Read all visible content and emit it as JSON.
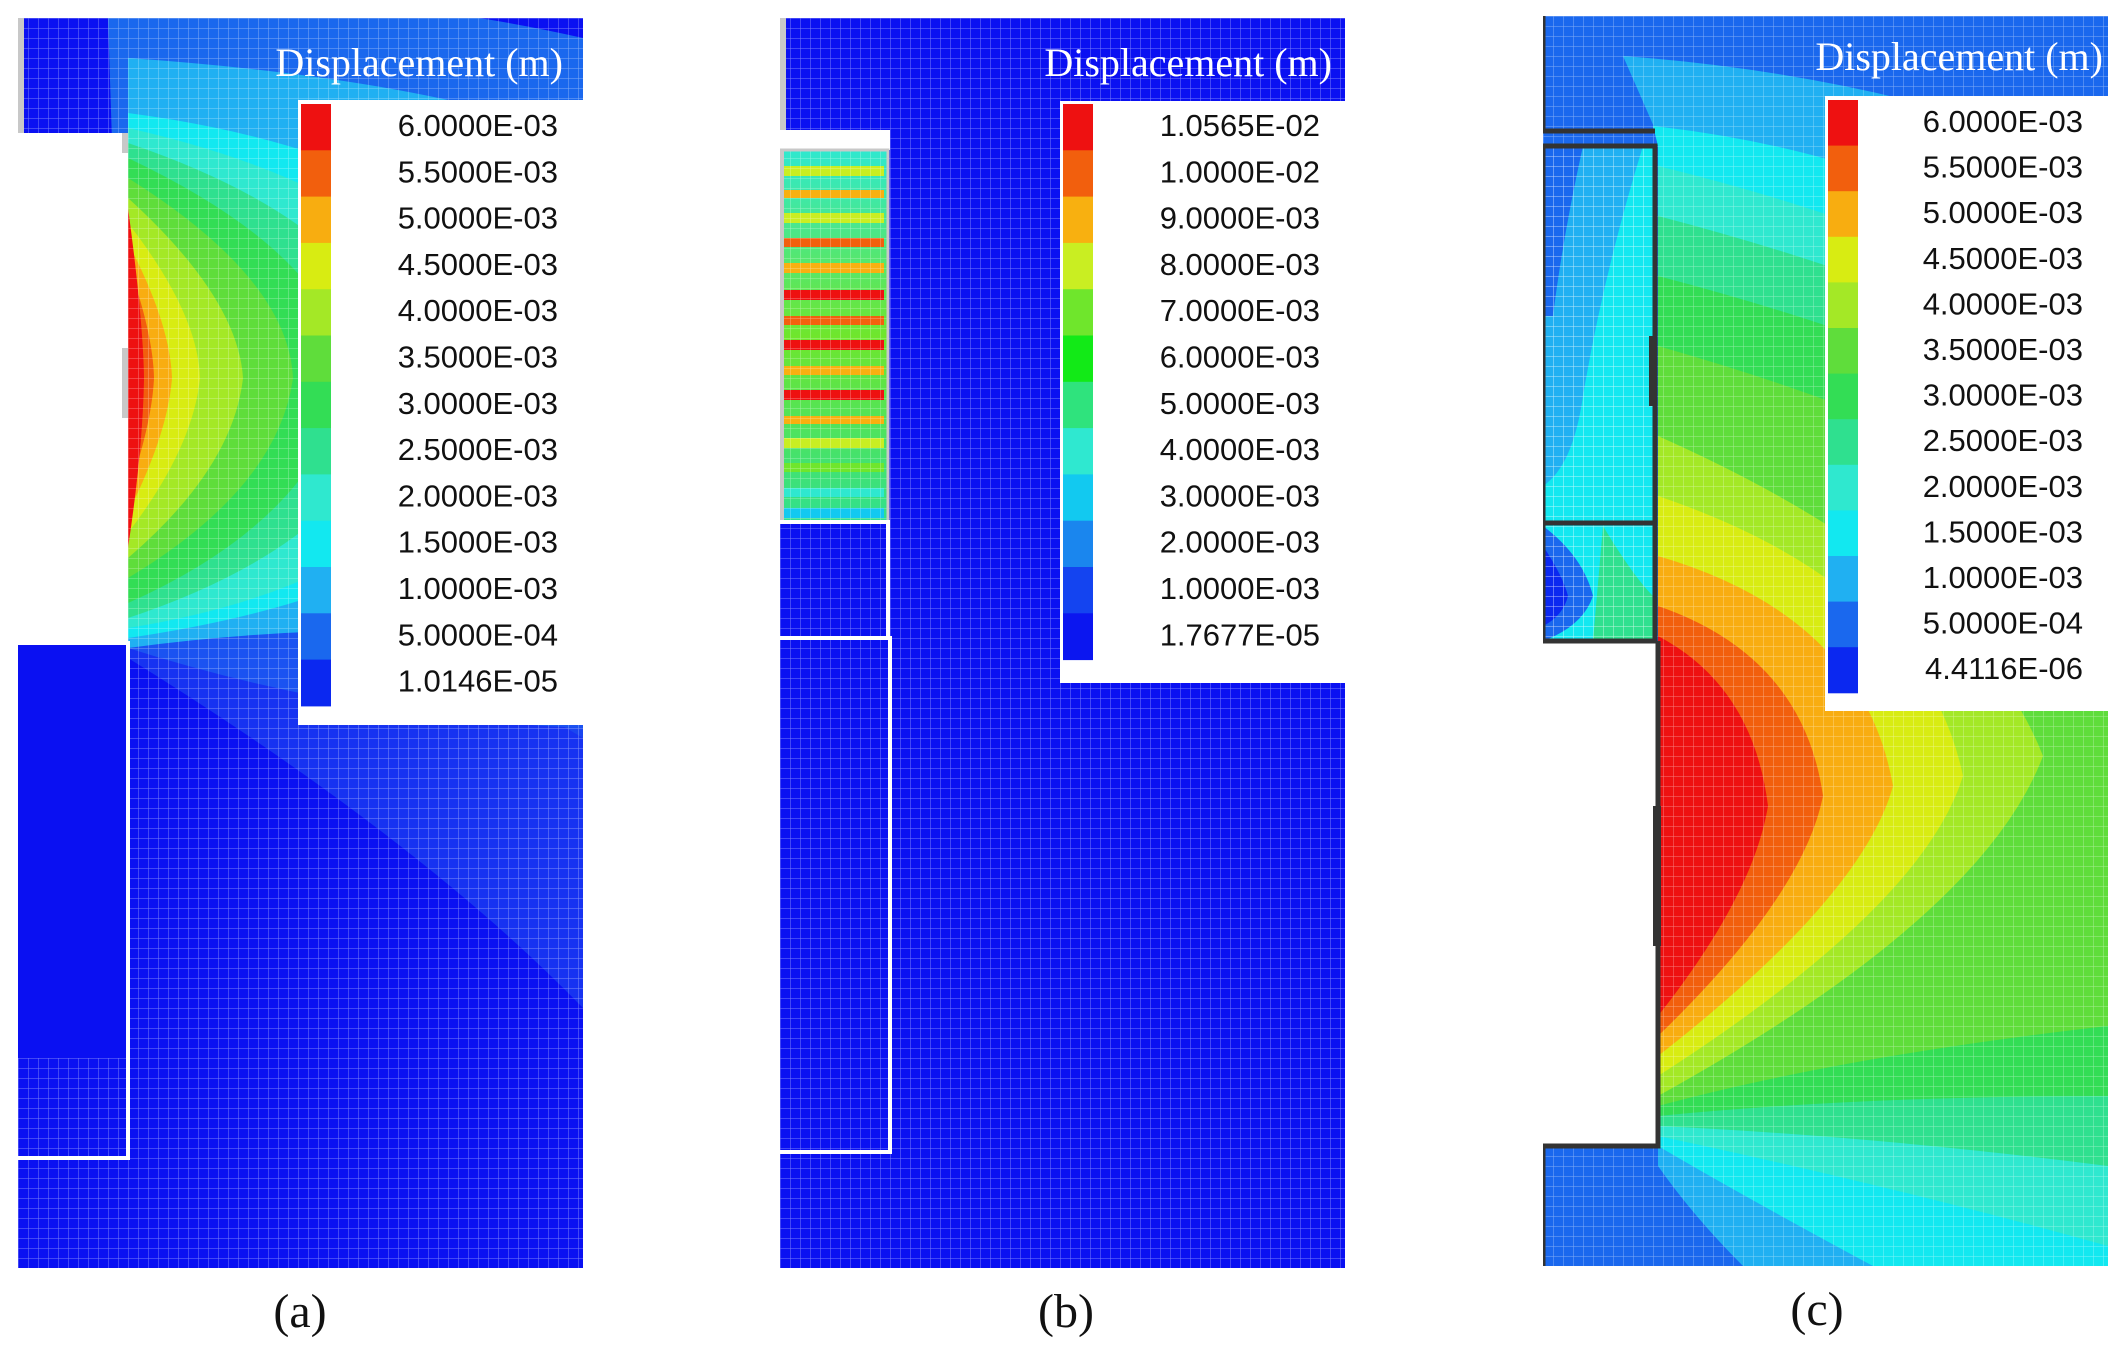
{
  "palette": {
    "background": "#0a10f2",
    "grid_line": "#ffffff",
    "outline": "#ffffff",
    "outline_dark": "#333333",
    "void_gray": "#c8c8c8"
  },
  "panels": [
    {
      "id": "a",
      "caption": "(a)",
      "legend": {
        "title": "Displacement (m)",
        "colors": [
          "#ee1111",
          "#f25f0d",
          "#f8ad10",
          "#d8ec12",
          "#a4e826",
          "#5fdd3b",
          "#33dd55",
          "#2fe08f",
          "#2fe8cf",
          "#12e8f0",
          "#20b0f2",
          "#1a68ee",
          "#0b28f0"
        ],
        "labels": [
          "6.0000E-03",
          "5.5000E-03",
          "5.0000E-03",
          "4.5000E-03",
          "4.0000E-03",
          "3.5000E-03",
          "3.0000E-03",
          "2.5000E-03",
          "2.0000E-03",
          "1.5000E-03",
          "1.0000E-03",
          "5.0000E-04",
          "1.0146E-05"
        ]
      }
    },
    {
      "id": "b",
      "caption": "(b)",
      "legend": {
        "title": "Displacement (m)",
        "colors": [
          "#ee1111",
          "#f25f0d",
          "#f8b010",
          "#c9ee22",
          "#6fe62c",
          "#12ea17",
          "#2fe37d",
          "#2fe8d0",
          "#12c9f0",
          "#1a86ee",
          "#1444f0",
          "#0b16f0"
        ],
        "labels": [
          "1.0565E-02",
          "1.0000E-02",
          "9.0000E-03",
          "8.0000E-03",
          "7.0000E-03",
          "6.0000E-03",
          "5.0000E-03",
          "4.0000E-03",
          "3.0000E-03",
          "2.0000E-03",
          "1.0000E-03",
          "1.7677E-05"
        ]
      }
    },
    {
      "id": "c",
      "caption": "(c)",
      "legend": {
        "title": "Displacement (m)",
        "colors": [
          "#ee1111",
          "#f25f0d",
          "#f8ad10",
          "#d8ec12",
          "#a4e826",
          "#5fdd3b",
          "#33dd55",
          "#2fe08f",
          "#2fe8cf",
          "#12e8f0",
          "#20b0f2",
          "#1a68ee",
          "#0b28f0"
        ],
        "labels": [
          "6.0000E-03",
          "5.5000E-03",
          "5.0000E-03",
          "4.5000E-03",
          "4.0000E-03",
          "3.5000E-03",
          "3.0000E-03",
          "2.5000E-03",
          "2.0000E-03",
          "1.5000E-03",
          "1.0000E-03",
          "5.0000E-04",
          "4.4116E-06"
        ]
      }
    }
  ]
}
